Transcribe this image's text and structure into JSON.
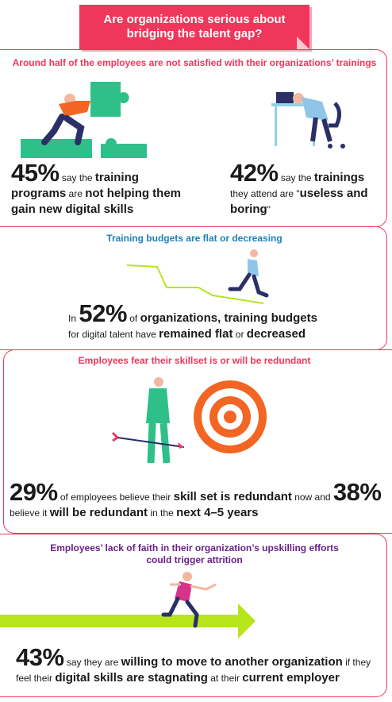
{
  "title": {
    "line1": "Are organizations serious about",
    "line2": "bridging the talent gap?"
  },
  "section1": {
    "heading": "Around half of the employees are not satisfied with their organizations’ trainings",
    "stat_a": {
      "percent": "45%",
      "p1": " say the ",
      "p2": "training",
      "p3": "programs",
      "p4": " are ",
      "p5": "not helping them",
      "p6": "gain new digital skills"
    },
    "stat_b": {
      "percent": "42%",
      "p1": " say the ",
      "p2": "trainings",
      "p3": "they attend are \"",
      "p4": "useless and",
      "p5": "boring",
      "p6": "\""
    }
  },
  "section2": {
    "heading": "Training budgets are flat or decreasing",
    "stat": {
      "in": "In ",
      "percent": "52%",
      "p1": " of ",
      "p2": "organizations, training budgets",
      "p3": "for digital talent have ",
      "p4": "remained flat",
      "p5": " or ",
      "p6": "decreased"
    }
  },
  "section3": {
    "heading": "Employees fear their skillset is or will be redundant",
    "stat": {
      "percent1": "29%",
      "p1": " of employees believe their ",
      "p2": "skill set is redundant",
      "p3": " now and ",
      "percent2": "38%",
      "p4": "believe it ",
      "p5": "will be redundant",
      "p6": " in the ",
      "p7": "next 4–5 years"
    }
  },
  "section4": {
    "heading1": "Employees’ lack of faith in their organization’s upskilling efforts",
    "heading2": "could trigger attrition",
    "stat": {
      "percent": "43%",
      "p1": " say they are ",
      "p2": "willing to move to another organization",
      "p3": " if they",
      "p4": "feel their ",
      "p5": "digital skills are stagnating",
      "p6": " at their ",
      "p7": "current employer"
    }
  },
  "colors": {
    "accent_red": "#f0365a",
    "heading_blue": "#1e7fb8",
    "heading_purple": "#6a1f8a",
    "green": "#2fc08a",
    "lime": "#b6e51c",
    "orange": "#f26522"
  }
}
